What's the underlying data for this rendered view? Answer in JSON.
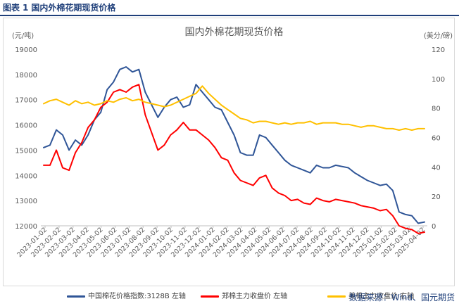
{
  "figure_label": "图表",
  "figure_number": "1",
  "figure_caption": "国内外棉花期现货价格",
  "source": "数据来源：Wind、国元期货",
  "chart_data": {
    "type": "line",
    "title": "国内外棉花期现货价格",
    "left_axis": {
      "unit": "(元/吨)",
      "ylim": [
        12000,
        19000
      ],
      "ticks": [
        12000,
        13000,
        14000,
        15000,
        16000,
        17000,
        18000,
        19000
      ]
    },
    "right_axis": {
      "unit": "(美分/磅)",
      "ylim": [
        0,
        120
      ],
      "ticks": [
        0,
        20,
        40,
        60,
        80,
        100,
        120
      ]
    },
    "x_ticks": [
      "2023-01-02",
      "2023-02-02",
      "2023-03-02",
      "2023-04-02",
      "2023-05-02",
      "2023-06-02",
      "2023-07-02",
      "2023-08-02",
      "2023-09-02",
      "2023-10-02",
      "2023-11-02",
      "2023-12-02",
      "2024-01-02",
      "2024-02-02",
      "2024-03-02",
      "2024-04-02",
      "2024-05-02",
      "2024-06-02",
      "2024-07-02",
      "2024-08-02",
      "2024-09-02",
      "2024-10-02",
      "2024-11-02",
      "2024-12-02",
      "2025-01-02",
      "2025-02-02",
      "2025-03-02",
      "2025-04-02"
    ],
    "series": [
      {
        "name": "中国棉花价格指数:3128B  左轴",
        "axis": "left",
        "color": "#2f5597",
        "values": [
          15100,
          15200,
          15800,
          15600,
          15000,
          15400,
          15200,
          15600,
          16200,
          16500,
          17400,
          17700,
          18200,
          18300,
          18100,
          18200,
          17300,
          16800,
          16300,
          16700,
          17000,
          17100,
          16700,
          16800,
          17600,
          17300,
          17000,
          16700,
          16600,
          16100,
          15600,
          14900,
          14800,
          14800,
          15600,
          15500,
          15200,
          14900,
          14600,
          14400,
          14300,
          14200,
          14100,
          14400,
          14300,
          14300,
          14400,
          14350,
          14300,
          14100,
          13950,
          13800,
          13700,
          13600,
          13650,
          13400,
          12550,
          12450,
          12400,
          12100,
          12150
        ]
      },
      {
        "name": "郑棉主力收盘价  左轴",
        "axis": "left",
        "color": "#ff0000",
        "values": [
          14400,
          14400,
          15000,
          14300,
          14200,
          14900,
          15300,
          15900,
          16200,
          16700,
          16900,
          17300,
          17400,
          17300,
          17500,
          17600,
          16400,
          15700,
          15000,
          15200,
          15600,
          15800,
          16100,
          15800,
          15800,
          15600,
          15400,
          15100,
          14700,
          14600,
          14100,
          13800,
          13700,
          13600,
          13900,
          14000,
          13500,
          13300,
          13200,
          13000,
          13050,
          12900,
          12850,
          13100,
          13000,
          12950,
          13050,
          13000,
          12950,
          12900,
          12800,
          12750,
          12700,
          12600,
          12650,
          12400,
          12000,
          11900,
          11850,
          11700,
          11750
        ]
      },
      {
        "name": "美棉主力收盘价  右轴",
        "axis": "right",
        "color": "#ffc000",
        "values": [
          83,
          85,
          86,
          84,
          82,
          85,
          83,
          84,
          82,
          83,
          85,
          84,
          86,
          87,
          85,
          86,
          84,
          83,
          82,
          81,
          82,
          84,
          86,
          88,
          90,
          95,
          90,
          86,
          82,
          79,
          76,
          73,
          72,
          70,
          71,
          71,
          70,
          69,
          70,
          69,
          70,
          70,
          71,
          69,
          70,
          70,
          70,
          69,
          69,
          68,
          67,
          68,
          68,
          67,
          66,
          66,
          65,
          66,
          65,
          66,
          66
        ]
      }
    ],
    "legend_position": "bottom",
    "grid": false
  }
}
